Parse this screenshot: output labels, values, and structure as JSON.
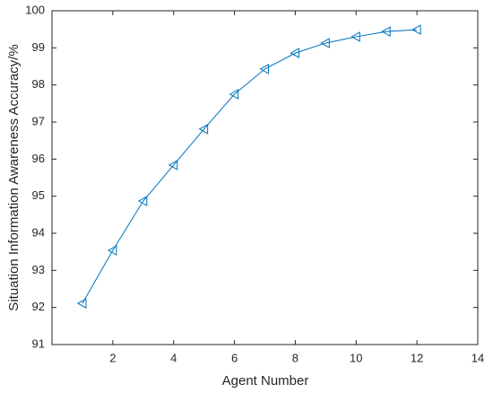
{
  "chart_data": {
    "type": "line",
    "xlabel": "Agent Number",
    "ylabel": "Situation Information Awareness Accuracy/%",
    "x": [
      1,
      2,
      3,
      4,
      5,
      6,
      7,
      8,
      9,
      10,
      11,
      12
    ],
    "values": [
      92.11,
      93.54,
      94.87,
      95.84,
      96.81,
      97.75,
      98.43,
      98.86,
      99.13,
      99.3,
      99.44,
      99.49
    ],
    "color": "#0072bd",
    "marker": "triangle-left",
    "xlim": [
      0,
      14
    ],
    "xticks": [
      2,
      4,
      6,
      8,
      10,
      12,
      14
    ],
    "ylim": [
      91,
      100
    ],
    "yticks": [
      91,
      92,
      93,
      94,
      95,
      96,
      97,
      98,
      99,
      100
    ],
    "grid": false
  }
}
